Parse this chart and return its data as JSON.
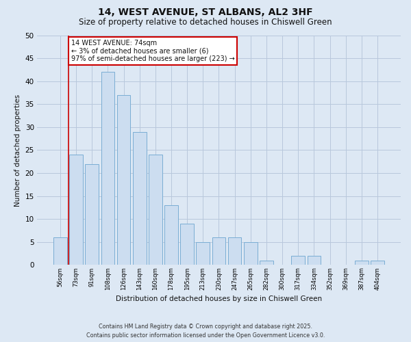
{
  "title": "14, WEST AVENUE, ST ALBANS, AL2 3HF",
  "subtitle": "Size of property relative to detached houses in Chiswell Green",
  "xlabel": "Distribution of detached houses by size in Chiswell Green",
  "ylabel": "Number of detached properties",
  "categories": [
    "56sqm",
    "73sqm",
    "91sqm",
    "108sqm",
    "126sqm",
    "143sqm",
    "160sqm",
    "178sqm",
    "195sqm",
    "213sqm",
    "230sqm",
    "247sqm",
    "265sqm",
    "282sqm",
    "300sqm",
    "317sqm",
    "334sqm",
    "352sqm",
    "369sqm",
    "387sqm",
    "404sqm"
  ],
  "values": [
    6,
    24,
    22,
    42,
    37,
    29,
    24,
    13,
    9,
    5,
    6,
    6,
    5,
    1,
    0,
    2,
    2,
    0,
    0,
    1,
    1
  ],
  "bar_color": "#ccddf0",
  "bar_edge_color": "#7aadd4",
  "vline_color": "#cc0000",
  "annotation_text": "14 WEST AVENUE: 74sqm\n← 3% of detached houses are smaller (6)\n97% of semi-detached houses are larger (223) →",
  "annotation_box_facecolor": "#ffffff",
  "annotation_box_edgecolor": "#cc0000",
  "ylim": [
    0,
    50
  ],
  "yticks": [
    0,
    5,
    10,
    15,
    20,
    25,
    30,
    35,
    40,
    45,
    50
  ],
  "grid_color": "#b8c8dc",
  "bg_color": "#dde8f4",
  "plot_bg_color": "#dde8f4",
  "footer_line1": "Contains HM Land Registry data © Crown copyright and database right 2025.",
  "footer_line2": "Contains public sector information licensed under the Open Government Licence v3.0.",
  "title_fontsize": 10,
  "subtitle_fontsize": 8.5,
  "bar_width": 0.85
}
